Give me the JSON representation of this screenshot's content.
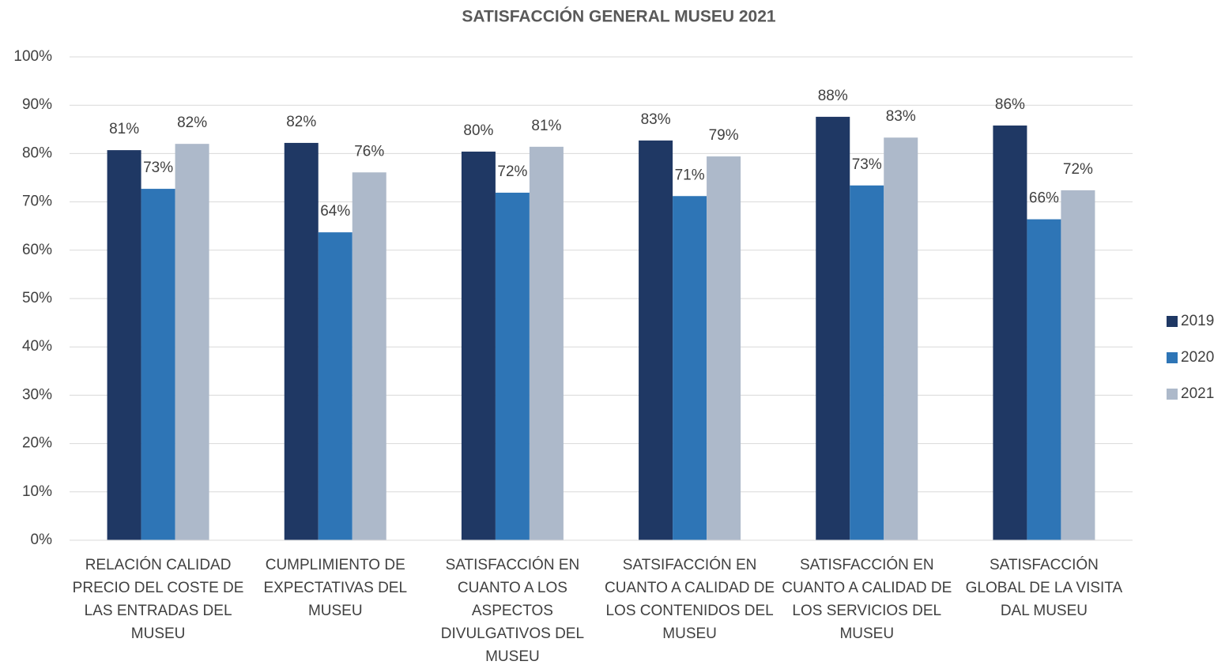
{
  "chart_data": {
    "type": "bar",
    "title": "SATISFACCIÓN GENERAL MUSEU 2021",
    "categories": [
      "RELACIÓN CALIDAD PRECIO DEL COSTE DE LAS ENTRADAS DEL MUSEU",
      "CUMPLIMIENTO DE EXPECTATIVAS DEL MUSEU",
      "SATISFACCIÓN EN CUANTO A LOS ASPECTOS DIVULGATIVOS DEL MUSEU",
      "SATSIFACCIÓN EN CUANTO A CALIDAD DE LOS CONTENIDOS DEL MUSEU",
      "SATISFACCIÓN EN CUANTO A CALIDAD DE LOS SERVICIOS DEL MUSEU",
      "SATISFACCIÓN GLOBAL DE LA VISITA DAL MUSEU"
    ],
    "series": [
      {
        "name": "2019",
        "color": "#1f3864",
        "values": [
          80.7,
          82.2,
          80.4,
          82.7,
          87.6,
          85.8
        ],
        "value_labels": [
          "81%",
          "82%",
          "80%",
          "83%",
          "88%",
          "86%"
        ]
      },
      {
        "name": "2020",
        "color": "#2e75b6",
        "values": [
          72.7,
          63.7,
          71.9,
          71.2,
          73.4,
          66.4
        ],
        "value_labels": [
          "73%",
          "64%",
          "72%",
          "71%",
          "73%",
          "66%"
        ]
      },
      {
        "name": "2021",
        "color": "#adb9ca",
        "values": [
          82.0,
          76.1,
          81.4,
          79.4,
          83.3,
          72.4
        ],
        "value_labels": [
          "82%",
          "76%",
          "81%",
          "79%",
          "83%",
          "72%"
        ]
      }
    ],
    "ylim": [
      0,
      100
    ],
    "yticks": [
      {
        "value": 0,
        "label": "0%"
      },
      {
        "value": 10,
        "label": "10%"
      },
      {
        "value": 20,
        "label": "20%"
      },
      {
        "value": 30,
        "label": "30%"
      },
      {
        "value": 40,
        "label": "40%"
      },
      {
        "value": 50,
        "label": "50%"
      },
      {
        "value": 60,
        "label": "60%"
      },
      {
        "value": 70,
        "label": "70%"
      },
      {
        "value": 80,
        "label": "80%"
      },
      {
        "value": 90,
        "label": "90%"
      },
      {
        "value": 100,
        "label": "100%"
      }
    ],
    "grid": true,
    "legend": "right"
  }
}
